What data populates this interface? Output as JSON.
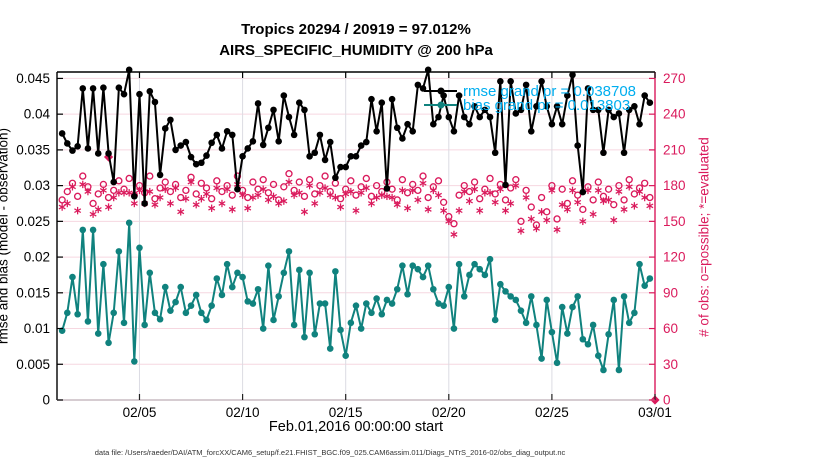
{
  "caption": {
    "text": "data file: /Users/raeder/DAI/ATM_forcXX/CAM6_setup/f.e21.FHIST_BGC.f09_025.CAM6assim.011/Diags_NTrS_2016-02/obs_diag_output.nc"
  },
  "colors": {
    "obs_pink": "#da1a5c",
    "rmse_black": "#000000",
    "bias_teal": "#10827e",
    "legend_text_cyan": "#00aeef",
    "grid_horizontal": "#f6d7e0",
    "grid_vertical": "#dcdce3",
    "bottom_spine": "#c9bcc2",
    "tick_dark": "#222222"
  },
  "chart_data": {
    "type": "line",
    "title": "Tropics 20294 / 20919 = 97.012%",
    "subtitle": "AIRS_SPECIFIC_HUMIDITY @ 200 hPa",
    "xlabel": "Feb.01,2016 00:00:00 start",
    "ylabel_left": "rmse and bias (model - observation)",
    "ylabel_right": "# of obs: o=possible; *=evaluated",
    "x_axis": {
      "start_day": 0,
      "end_day": 29,
      "tick_days": [
        4,
        9,
        14,
        19,
        24,
        29
      ],
      "tick_labels": [
        "02/05",
        "02/10",
        "02/15",
        "02/20",
        "02/25",
        "03/01"
      ]
    },
    "y_left": {
      "min": 0,
      "max": 0.0459,
      "ticks": [
        0,
        0.005,
        0.01,
        0.015,
        0.02,
        0.025,
        0.03,
        0.035,
        0.04,
        0.045
      ],
      "tick_labels": [
        "0",
        "0.005",
        "0.01",
        "0.015",
        "0.02",
        "0.025",
        "0.03",
        "0.035",
        "0.04",
        "0.045"
      ]
    },
    "y_right": {
      "min": 0,
      "max": 275.4,
      "ticks": [
        0,
        30,
        60,
        90,
        120,
        150,
        180,
        210,
        240,
        270
      ],
      "tick_labels": [
        "0",
        "30",
        "60",
        "90",
        "120",
        "150",
        "180",
        "210",
        "240",
        "270"
      ]
    },
    "sample_start_day": 0.25,
    "sample_step_days": 0.25,
    "grid": {
      "horizontal": true,
      "vertical": true
    },
    "legend_position": "upper-right-inside",
    "series": [
      {
        "name": "rmse",
        "legend": "rmse grand pr = 0.038708",
        "axis": "left",
        "color": "#000000",
        "marker": "dot",
        "line": true,
        "values": [
          0.0373,
          0.0359,
          0.0349,
          0.0355,
          0.0436,
          0.0352,
          0.0436,
          0.0345,
          0.0437,
          0.0345,
          0.0305,
          0.0437,
          0.0428,
          0.0462,
          0.0285,
          0.0428,
          0.0275,
          0.0432,
          0.0417,
          0.0315,
          0.038,
          0.0392,
          0.035,
          0.0356,
          0.0361,
          0.034,
          0.033,
          0.0332,
          0.0342,
          0.036,
          0.0371,
          0.0352,
          0.0376,
          0.0371,
          0.0295,
          0.0341,
          0.0352,
          0.0362,
          0.0415,
          0.0357,
          0.0381,
          0.0406,
          0.0362,
          0.0426,
          0.0396,
          0.0371,
          0.0416,
          0.0406,
          0.0341,
          0.0346,
          0.0371,
          0.0336,
          0.0361,
          0.0311,
          0.0326,
          0.0326,
          0.0341,
          0.0341,
          0.0356,
          0.0361,
          0.0421,
          0.0376,
          0.0416,
          0.0296,
          0.0421,
          0.0381,
          0.0366,
          0.0386,
          0.0376,
          0.0441,
          0.0436,
          0.0462,
          0.0386,
          0.0396,
          0.0426,
          0.0396,
          0.0376,
          0.0426,
          0.0396,
          0.0386,
          0.0411,
          0.0396,
          0.0406,
          0.0396,
          0.0346,
          0.0446,
          0.0301,
          0.0446,
          0.0401,
          0.0406,
          0.0441,
          0.0376,
          0.0411,
          0.0446,
          0.0411,
          0.0386,
          0.0411,
          0.0386,
          0.0426,
          0.0455,
          0.0356,
          0.0291,
          0.0436,
          0.0406,
          0.0406,
          0.0346,
          0.0406,
          0.0396,
          0.0401,
          0.0346,
          0.0406,
          0.0411,
          0.0386,
          0.0426,
          0.0416
        ]
      },
      {
        "name": "bias",
        "legend": "bias grand pr = 0.013803",
        "axis": "left",
        "color": "#10827e",
        "marker": "dot",
        "line": true,
        "values": [
          0.0097,
          0.0122,
          0.0172,
          0.012,
          0.0238,
          0.011,
          0.0238,
          0.0093,
          0.019,
          0.008,
          0.0122,
          0.0208,
          0.0108,
          0.0248,
          0.0054,
          0.0213,
          0.0105,
          0.0178,
          0.0122,
          0.0113,
          0.0158,
          0.0125,
          0.0137,
          0.0158,
          0.0122,
          0.0132,
          0.0147,
          0.0122,
          0.0112,
          0.0132,
          0.017,
          0.0147,
          0.019,
          0.0158,
          0.0178,
          0.0172,
          0.0138,
          0.0135,
          0.0155,
          0.01,
          0.0188,
          0.0112,
          0.0145,
          0.0178,
          0.0208,
          0.0105,
          0.0182,
          0.0088,
          0.0178,
          0.0092,
          0.0135,
          0.0135,
          0.0072,
          0.018,
          0.0098,
          0.0062,
          0.0108,
          0.0132,
          0.01,
          0.0135,
          0.0122,
          0.0142,
          0.012,
          0.014,
          0.0135,
          0.0155,
          0.0188,
          0.0148,
          0.0188,
          0.0183,
          0.0172,
          0.0188,
          0.0155,
          0.0135,
          0.0132,
          0.0158,
          0.01,
          0.019,
          0.0145,
          0.0175,
          0.019,
          0.0183,
          0.0175,
          0.0197,
          0.0112,
          0.0162,
          0.0152,
          0.0145,
          0.014,
          0.0125,
          0.0108,
          0.0145,
          0.0105,
          0.0058,
          0.014,
          0.0095,
          0.0052,
          0.013,
          0.0093,
          0.013,
          0.0145,
          0.0085,
          0.0078,
          0.0105,
          0.0062,
          0.0042,
          0.0092,
          0.014,
          0.0042,
          0.0145,
          0.0108,
          0.0122,
          0.019,
          0.016,
          0.017
        ]
      },
      {
        "name": "possible",
        "legend": null,
        "axis": "right",
        "color": "#da1a5c",
        "marker": "circle",
        "line": false,
        "values": [
          168,
          175,
          182,
          171,
          188,
          179,
          165,
          173,
          181,
          170,
          176,
          184,
          177,
          186,
          172,
          180,
          174,
          188,
          169,
          178,
          183,
          175,
          181,
          170,
          176,
          187,
          173,
          182,
          178,
          169,
          184,
          175,
          180,
          172,
          188,
          176,
          170,
          183,
          177,
          185,
          174,
          181,
          168,
          179,
          190,
          176,
          183,
          171,
          185,
          173,
          180,
          188,
          175,
          182,
          169,
          177,
          184,
          172,
          179,
          186,
          171,
          180,
          175,
          183,
          177,
          168,
          185,
          174,
          181,
          176,
          188,
          170,
          179,
          184,
          166,
          154,
          148,
          172,
          180,
          175,
          183,
          169,
          177,
          186,
          173,
          181,
          168,
          178,
          185,
          150,
          176,
          162,
          147,
          170,
          158,
          180,
          152,
          177,
          165,
          184,
          172,
          160,
          179,
          168,
          183,
          171,
          177,
          164,
          180,
          168,
          185,
          173,
          178,
          182,
          170
        ]
      },
      {
        "name": "evaluated",
        "legend": null,
        "axis": "right",
        "color": "#da1a5c",
        "marker": "asterisk",
        "line": false,
        "values": [
          162,
          165,
          179,
          159,
          181,
          175,
          156,
          160,
          176,
          162,
          170,
          174,
          174,
          174,
          165,
          176,
          165,
          175,
          164,
          170,
          177,
          165,
          178,
          158,
          169,
          183,
          164,
          169,
          173,
          161,
          178,
          165,
          177,
          160,
          181,
          172,
          161,
          170,
          172,
          177,
          168,
          171,
          165,
          167,
          183,
          172,
          174,
          158,
          180,
          165,
          174,
          178,
          172,
          170,
          162,
          173,
          175,
          159,
          174,
          178,
          165,
          170,
          172,
          171,
          170,
          164,
          176,
          161,
          176,
          168,
          182,
          160,
          176,
          172,
          159,
          150,
          139,
          159,
          175,
          167,
          177,
          159,
          174,
          174,
          166,
          177,
          159,
          165,
          180,
          142,
          170,
          152,
          144,
          158,
          151,
          176,
          143,
          164,
          160,
          176,
          166,
          150,
          176,
          156,
          176,
          167,
          168,
          151,
          175,
          160,
          179,
          163,
          175,
          170,
          163
        ]
      }
    ],
    "extra_points": [
      {
        "series": "possible",
        "day": 2.5,
        "value": 204,
        "marker": "diamond"
      },
      {
        "series": "possible",
        "day": 29,
        "value": 0,
        "marker": "diamond"
      }
    ]
  }
}
